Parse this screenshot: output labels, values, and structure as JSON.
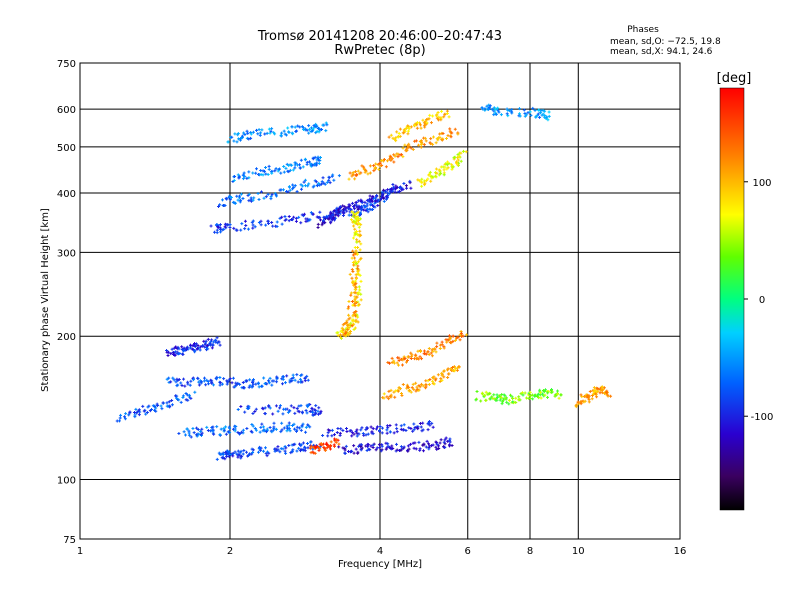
{
  "chart_data": {
    "type": "scatter",
    "title": "Tromsø 20141208 20:46:00–20:47:43",
    "subtitle": "RwPretec (8p)",
    "xlabel": "Frequency [MHz]",
    "ylabel": "Stationary phase Virtual Height [km]",
    "x_scale": "log",
    "y_scale": "log",
    "xlim": [
      1,
      16
    ],
    "ylim": [
      75,
      750
    ],
    "x_ticks": [
      1,
      2,
      4,
      6,
      8,
      10,
      16
    ],
    "x_tick_labels": [
      "1",
      "2",
      "4",
      "6",
      "8",
      "10",
      "16"
    ],
    "y_ticks": [
      75,
      100,
      200,
      300,
      400,
      500,
      600,
      750
    ],
    "y_tick_labels": [
      "75",
      "100",
      "200",
      "300",
      "400",
      "500",
      "600",
      "750"
    ],
    "grid": true,
    "stats": {
      "heading": "Phases",
      "line1": "mean, sd,O: −72.5, 19.8",
      "line2": "mean, sd,X:  94.1, 24.6"
    },
    "colorbar": {
      "label": "[deg]",
      "range": [
        -180,
        180
      ],
      "ticks": [
        100,
        0,
        -100
      ],
      "tick_labels": [
        "100",
        "0",
        "-100"
      ]
    },
    "traces": [
      {
        "points": [
          [
            1.9,
            112
          ],
          [
            2.0,
            113
          ],
          [
            2.2,
            114
          ],
          [
            2.5,
            115
          ],
          [
            2.8,
            117
          ],
          [
            3.0,
            118
          ]
        ],
        "phase": -85
      },
      {
        "points": [
          [
            1.5,
            160
          ],
          [
            1.7,
            160
          ],
          [
            1.9,
            162
          ],
          [
            2.1,
            158
          ],
          [
            2.3,
            160
          ],
          [
            2.6,
            162
          ],
          [
            2.9,
            163
          ]
        ],
        "phase": -80
      },
      {
        "points": [
          [
            1.5,
            185
          ],
          [
            1.6,
            186
          ],
          [
            1.7,
            190
          ],
          [
            1.8,
            192
          ],
          [
            1.9,
            195
          ]
        ],
        "phase": -95
      },
      {
        "points": [
          [
            1.2,
            135
          ],
          [
            1.35,
            140
          ],
          [
            1.5,
            145
          ],
          [
            1.7,
            150
          ]
        ],
        "phase": -75
      },
      {
        "points": [
          [
            1.6,
            125
          ],
          [
            1.8,
            126
          ],
          [
            2.0,
            127
          ],
          [
            2.3,
            128
          ],
          [
            2.6,
            129
          ],
          [
            2.9,
            128
          ]
        ],
        "phase": -70
      },
      {
        "points": [
          [
            2.1,
            140
          ],
          [
            2.5,
            140
          ],
          [
            2.9,
            141
          ],
          [
            3.0,
            138
          ]
        ],
        "phase": -85
      },
      {
        "points": [
          [
            1.85,
            335
          ],
          [
            2.0,
            340
          ],
          [
            2.4,
            345
          ],
          [
            2.8,
            355
          ],
          [
            3.2,
            360
          ],
          [
            3.6,
            365
          ],
          [
            3.8,
            375
          ],
          [
            4.0,
            390
          ],
          [
            4.3,
            410
          ]
        ],
        "phase": -90
      },
      {
        "points": [
          [
            1.9,
            380
          ],
          [
            2.1,
            390
          ],
          [
            2.5,
            400
          ],
          [
            2.9,
            420
          ],
          [
            3.3,
            430
          ]
        ],
        "phase": -70
      },
      {
        "points": [
          [
            2.0,
            430
          ],
          [
            2.3,
            445
          ],
          [
            2.6,
            450
          ],
          [
            2.9,
            465
          ],
          [
            3.0,
            470
          ]
        ],
        "phase": -60
      },
      {
        "points": [
          [
            2.0,
            520
          ],
          [
            2.2,
            530
          ],
          [
            2.6,
            540
          ],
          [
            2.9,
            545
          ],
          [
            3.1,
            550
          ]
        ],
        "phase": -55
      },
      {
        "points": [
          [
            3.05,
            345
          ],
          [
            3.2,
            355
          ],
          [
            3.3,
            365
          ],
          [
            3.5,
            375
          ],
          [
            3.8,
            385
          ],
          [
            4.2,
            400
          ],
          [
            4.6,
            420
          ]
        ],
        "phase": -110
      },
      {
        "points": [
          [
            3.3,
            200
          ],
          [
            3.55,
            210
          ],
          [
            3.6,
            240
          ],
          [
            3.6,
            280
          ],
          [
            3.6,
            320
          ],
          [
            3.6,
            350
          ],
          [
            3.55,
            360
          ]
        ],
        "phase": 80
      },
      {
        "points": [
          [
            3.35,
            200
          ],
          [
            3.5,
            215
          ],
          [
            3.55,
            250
          ],
          [
            3.55,
            300
          ]
        ],
        "phase": 110
      },
      {
        "points": [
          [
            3.35,
            115
          ],
          [
            3.7,
            116
          ],
          [
            4.1,
            117
          ],
          [
            4.6,
            117
          ],
          [
            5.2,
            118
          ],
          [
            5.6,
            120
          ]
        ],
        "phase": -110
      },
      {
        "points": [
          [
            3.1,
            125
          ],
          [
            3.6,
            126
          ],
          [
            4.0,
            127
          ],
          [
            4.6,
            128
          ],
          [
            5.1,
            130
          ]
        ],
        "phase": -100
      },
      {
        "points": [
          [
            2.9,
            115
          ],
          [
            3.1,
            117
          ],
          [
            3.3,
            120
          ]
        ],
        "phase": 150
      },
      {
        "points": [
          [
            4.1,
            150
          ],
          [
            4.5,
            155
          ],
          [
            4.9,
            158
          ],
          [
            5.4,
            165
          ],
          [
            5.8,
            175
          ]
        ],
        "phase": 105
      },
      {
        "points": [
          [
            4.2,
            175
          ],
          [
            4.6,
            180
          ],
          [
            5.0,
            185
          ],
          [
            5.5,
            195
          ],
          [
            5.9,
            205
          ]
        ],
        "phase": 120
      },
      {
        "points": [
          [
            3.5,
            430
          ],
          [
            3.8,
            450
          ],
          [
            4.2,
            470
          ],
          [
            4.6,
            500
          ],
          [
            5.2,
            520
          ],
          [
            5.7,
            540
          ]
        ],
        "phase": 115
      },
      {
        "points": [
          [
            4.2,
            520
          ],
          [
            4.6,
            545
          ],
          [
            5.0,
            570
          ],
          [
            5.5,
            590
          ]
        ],
        "phase": 95
      },
      {
        "points": [
          [
            4.8,
            420
          ],
          [
            5.2,
            440
          ],
          [
            5.6,
            460
          ],
          [
            5.9,
            480
          ]
        ],
        "phase": 70
      },
      {
        "points": [
          [
            6.3,
            150
          ],
          [
            6.8,
            148
          ],
          [
            7.2,
            147
          ],
          [
            8.0,
            150
          ],
          [
            8.6,
            152
          ],
          [
            9.2,
            150
          ]
        ],
        "phase": 40
      },
      {
        "points": [
          [
            10.0,
            145
          ],
          [
            10.5,
            150
          ],
          [
            11.0,
            155
          ],
          [
            11.5,
            150
          ]
        ],
        "phase": 110
      },
      {
        "points": [
          [
            6.5,
            600
          ],
          [
            7.0,
            590
          ],
          [
            8.2,
            590
          ],
          [
            8.8,
            580
          ]
        ],
        "phase": -50
      }
    ]
  }
}
